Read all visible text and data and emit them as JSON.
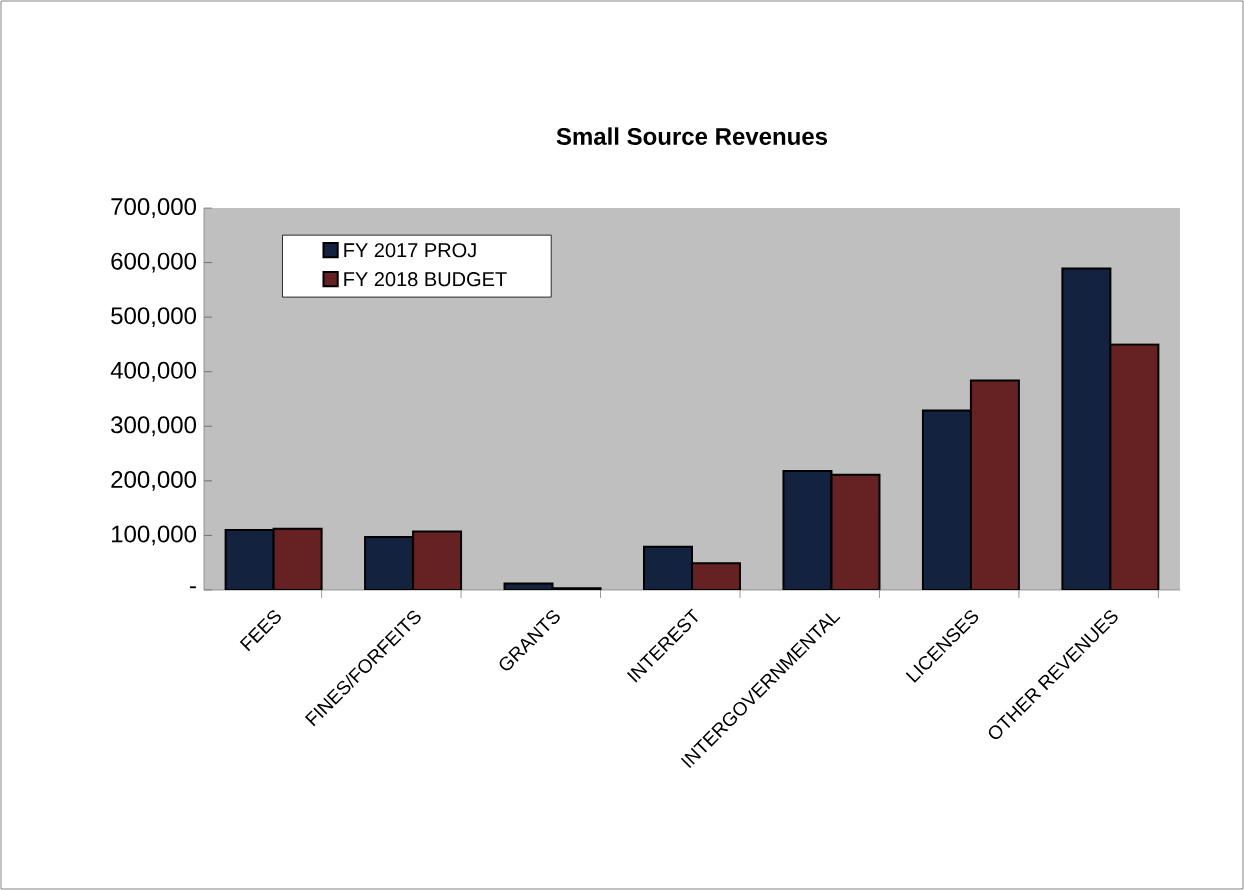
{
  "chart_data": {
    "type": "bar",
    "title": "Small Source Revenues",
    "categories": [
      "FEES",
      "FINES/FORFEITS",
      "GRANTS",
      "INTEREST",
      "INTERGOVERNMENTAL",
      "LICENSES",
      "OTHER REVENUES"
    ],
    "series": [
      {
        "name": "FY 2017 PROJ",
        "color": "#13233f",
        "values": [
          110000,
          97000,
          12000,
          79000,
          218000,
          329000,
          589000
        ]
      },
      {
        "name": "FY 2018 BUDGET",
        "color": "#662222",
        "values": [
          112000,
          107000,
          3000,
          49000,
          211000,
          384000,
          450000
        ]
      }
    ],
    "ylim": [
      0,
      700000
    ],
    "yticks": [
      {
        "value": 0,
        "label": "-"
      },
      {
        "value": 100000,
        "label": "100,000"
      },
      {
        "value": 200000,
        "label": "200,000"
      },
      {
        "value": 300000,
        "label": "300,000"
      },
      {
        "value": 400000,
        "label": "400,000"
      },
      {
        "value": 500000,
        "label": "500,000"
      },
      {
        "value": 600000,
        "label": "600,000"
      },
      {
        "value": 700000,
        "label": "700,000"
      }
    ],
    "legend": "top left",
    "grid": false
  }
}
